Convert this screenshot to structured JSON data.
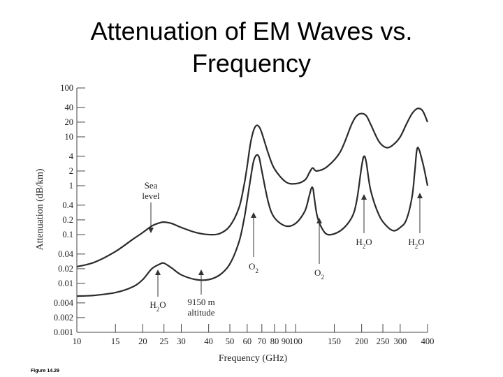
{
  "slide": {
    "title_line1": "Attenuation of EM Waves vs.",
    "title_line2": "Frequency",
    "figure_caption": "Figure 14.29"
  },
  "chart_data": {
    "type": "line",
    "title": "",
    "xlabel": "Frequency (GHz)",
    "ylabel": "Attenuation (dB/km)",
    "x_scale": "log",
    "y_scale": "log",
    "xlim": [
      10,
      400
    ],
    "ylim": [
      0.001,
      100
    ],
    "x_ticks": [
      10,
      15,
      20,
      25,
      30,
      40,
      50,
      60,
      70,
      80,
      90,
      100,
      150,
      200,
      250,
      300,
      400
    ],
    "x_tick_labels": [
      "10",
      "15",
      "20",
      "25",
      "30",
      "40",
      "50",
      "60",
      "70",
      "80",
      "90",
      "100",
      "150",
      "200",
      "250",
      "300",
      "400"
    ],
    "y_ticks": [
      0.001,
      0.002,
      0.004,
      0.01,
      0.02,
      0.04,
      0.1,
      0.2,
      0.4,
      1,
      2,
      4,
      10,
      20,
      40,
      100
    ],
    "y_tick_labels": [
      "0.001",
      "0.002",
      "0.004",
      "0.01",
      "0.02",
      "0.04",
      "0.1",
      "0.2",
      "0.4",
      "1",
      "2",
      "4",
      "10",
      "20",
      "40",
      "100"
    ],
    "grid": false,
    "series": [
      {
        "id": "sea-level",
        "color": "#2b2b2b",
        "x": [
          10,
          12,
          15,
          18,
          20,
          22,
          24,
          25,
          27,
          30,
          35,
          40,
          45,
          50,
          55,
          58,
          60,
          62,
          64,
          66,
          68,
          70,
          75,
          80,
          90,
          100,
          110,
          115,
          118,
          120,
          125,
          140,
          160,
          180,
          190,
          200,
          210,
          220,
          240,
          260,
          280,
          300,
          320,
          340,
          360,
          380,
          400
        ],
        "y": [
          0.022,
          0.027,
          0.045,
          0.08,
          0.11,
          0.15,
          0.175,
          0.18,
          0.17,
          0.14,
          0.11,
          0.1,
          0.105,
          0.15,
          0.35,
          1,
          2.5,
          7,
          13,
          17,
          16,
          12,
          4.5,
          2.2,
          1.2,
          1.1,
          1.3,
          1.8,
          2.2,
          2.3,
          2,
          2.5,
          5,
          18,
          27,
          30,
          27,
          18,
          8,
          6,
          7,
          10,
          18,
          30,
          38,
          34,
          20
        ]
      },
      {
        "id": "altitude-9150m",
        "color": "#2b2b2b",
        "x": [
          10,
          12,
          15,
          18,
          20,
          22,
          24,
          25,
          27,
          30,
          35,
          40,
          45,
          50,
          55,
          58,
          60,
          62,
          64,
          66,
          68,
          70,
          75,
          80,
          90,
          100,
          110,
          115,
          118,
          120,
          122,
          125,
          130,
          140,
          160,
          180,
          190,
          200,
          205,
          210,
          220,
          240,
          260,
          280,
          300,
          320,
          340,
          350,
          360,
          380,
          400
        ],
        "y": [
          0.0055,
          0.0057,
          0.0065,
          0.0085,
          0.012,
          0.02,
          0.025,
          0.026,
          0.021,
          0.015,
          0.012,
          0.012,
          0.015,
          0.025,
          0.07,
          0.2,
          0.5,
          1.3,
          3,
          4.2,
          3.8,
          2,
          0.45,
          0.22,
          0.15,
          0.17,
          0.3,
          0.6,
          0.9,
          0.85,
          0.5,
          0.25,
          0.15,
          0.1,
          0.12,
          0.22,
          0.5,
          2.5,
          4,
          3,
          0.8,
          0.25,
          0.15,
          0.12,
          0.14,
          0.2,
          0.6,
          2,
          6,
          3,
          1
        ]
      }
    ],
    "annotations": [
      {
        "id": "sea-level",
        "lines": [
          "Sea",
          "level"
        ]
      },
      {
        "id": "altitude",
        "lines": [
          "9150 m",
          "altitude"
        ]
      },
      {
        "id": "h2o-22",
        "formula": {
          "a": "H",
          "sub": "2",
          "b": "O"
        }
      },
      {
        "id": "o2-60",
        "formula": {
          "a": "O",
          "sub": "2",
          "b": ""
        }
      },
      {
        "id": "o2-119",
        "formula": {
          "a": "O",
          "sub": "2",
          "b": ""
        }
      },
      {
        "id": "h2o-183",
        "formula": {
          "a": "H",
          "sub": "2",
          "b": "O"
        }
      },
      {
        "id": "h2o-325",
        "formula": {
          "a": "H",
          "sub": "2",
          "b": "O"
        }
      }
    ]
  }
}
